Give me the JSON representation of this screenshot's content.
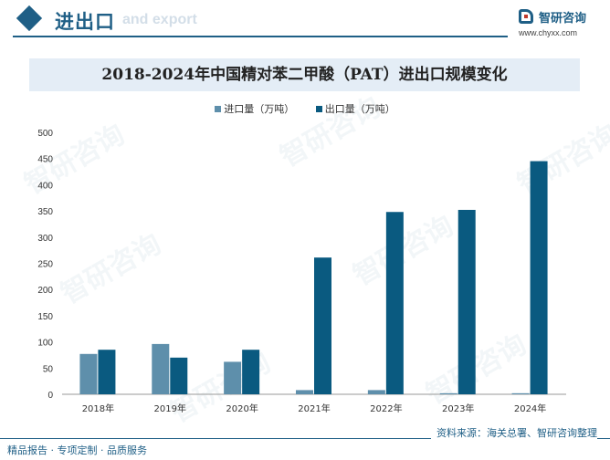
{
  "header": {
    "title": "进出口",
    "subtitle": "and export",
    "logo_name": "智研咨询",
    "logo_url": "www.chyxx.com"
  },
  "watermark": "智研咨询",
  "footer": {
    "source": "资料来源：海关总署、智研咨询整理",
    "slogan": "精品报告 · 专项定制 · 品质服务"
  },
  "colors": {
    "import": "#5e8fab",
    "export": "#0a5a80",
    "brand": "#1f5f86"
  },
  "chart_data": {
    "type": "bar",
    "title": "2018-2024年中国精对苯二甲酸（PAT）进出口规模变化",
    "categories": [
      "2018年",
      "2019年",
      "2020年",
      "2021年",
      "2022年",
      "2023年",
      "2024年"
    ],
    "series": [
      {
        "name": "进口量（万吨）",
        "values": [
          77,
          96,
          62,
          8,
          8,
          2,
          2
        ]
      },
      {
        "name": "出口量（万吨）",
        "values": [
          85,
          70,
          85,
          261,
          348,
          352,
          445
        ]
      }
    ],
    "yticks": [
      0,
      50,
      100,
      150,
      200,
      250,
      300,
      350,
      400,
      450,
      500
    ],
    "ylim": [
      0,
      500
    ],
    "xlabel": "",
    "ylabel": "",
    "legend_position": "top-center",
    "grid": false
  }
}
